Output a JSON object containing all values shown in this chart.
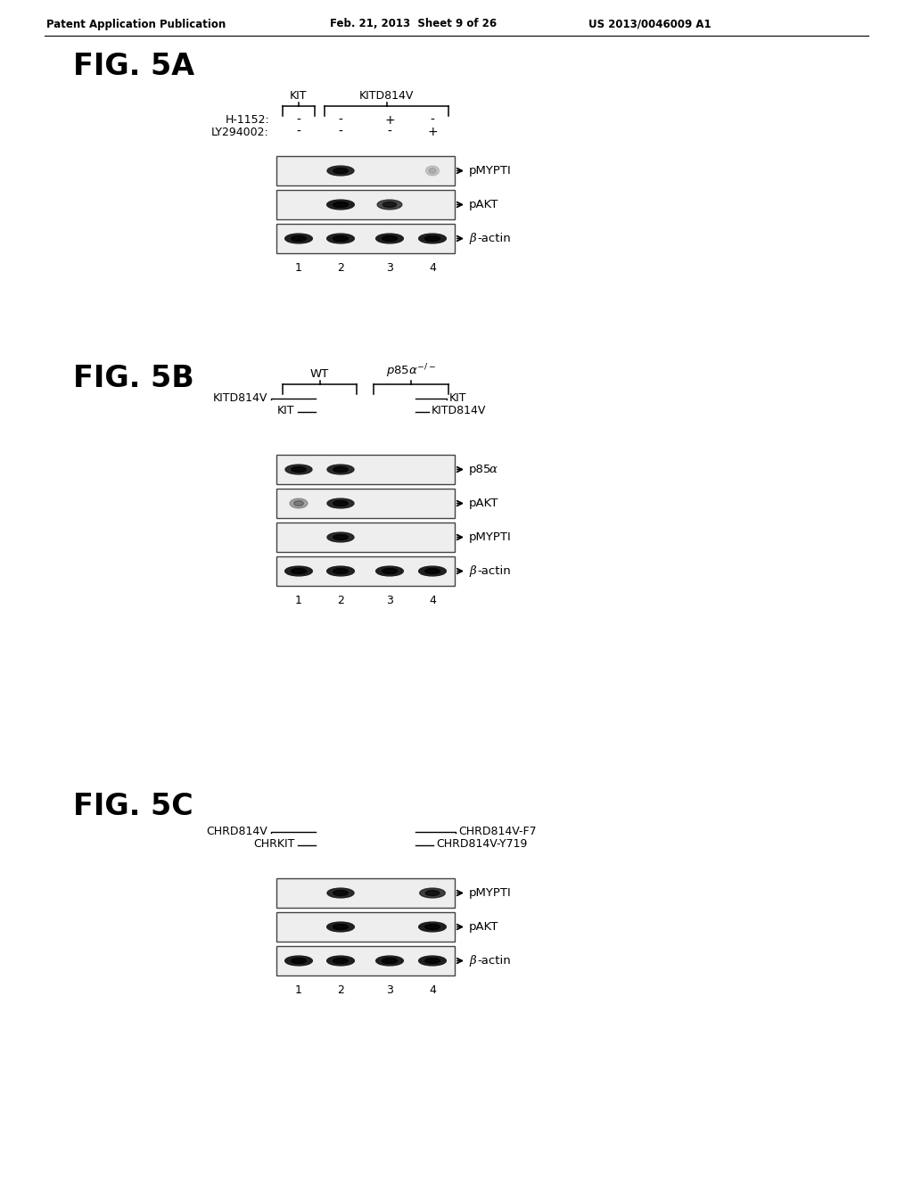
{
  "header_left": "Patent Application Publication",
  "header_mid": "Feb. 21, 2013  Sheet 9 of 26",
  "header_right": "US 2013/0046009 A1",
  "bg_color": "#ffffff",
  "fig5a": {
    "title": "FIG. 5A",
    "row_labels": [
      "H-1152:",
      "LY294002:"
    ],
    "row_signs": [
      [
        "-",
        "-",
        "+",
        "-"
      ],
      [
        "-",
        "-",
        "-",
        "+"
      ]
    ],
    "blot_rows": [
      {
        "label": "pMYPTI",
        "bands": [
          0,
          0.85,
          0,
          0.15
        ]
      },
      {
        "label": "pAKT",
        "bands": [
          0,
          0.9,
          0.7,
          0
        ]
      },
      {
        "label": "β-actin",
        "bands": [
          0.9,
          0.9,
          0.9,
          0.9
        ]
      }
    ],
    "lane_numbers": [
      "1",
      "2",
      "3",
      "4"
    ]
  },
  "fig5b": {
    "title": "FIG. 5B",
    "blot_rows": [
      {
        "label": "p85α",
        "bands": [
          0.85,
          0.85,
          0,
          0
        ]
      },
      {
        "label": "pAKT",
        "bands": [
          0.3,
          0.85,
          0,
          0
        ]
      },
      {
        "label": "pMYPTI",
        "bands": [
          0,
          0.85,
          0,
          0
        ]
      },
      {
        "label": "β-actin",
        "bands": [
          0.9,
          0.9,
          0.9,
          0.9
        ]
      }
    ],
    "lane_numbers": [
      "1",
      "2",
      "3",
      "4"
    ]
  },
  "fig5c": {
    "title": "FIG. 5C",
    "blot_rows": [
      {
        "label": "pMYPTI",
        "bands": [
          0,
          0.85,
          0,
          0.75
        ]
      },
      {
        "label": "pAKT",
        "bands": [
          0,
          0.9,
          0,
          0.9
        ]
      },
      {
        "label": "β-actin",
        "bands": [
          0.9,
          0.9,
          0.9,
          0.9
        ]
      }
    ],
    "lane_numbers": [
      "1",
      "2",
      "3",
      "4"
    ]
  }
}
